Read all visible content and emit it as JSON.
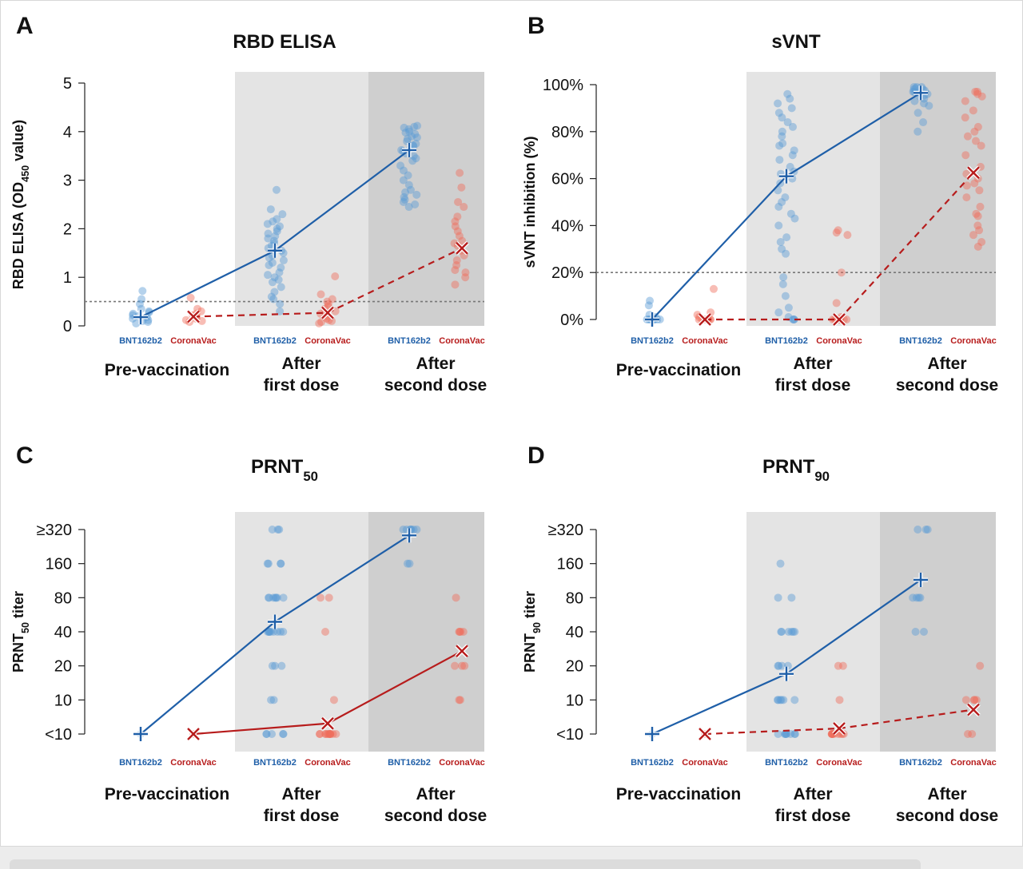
{
  "colors": {
    "bnt": "#1f5fa8",
    "bnt_dot": "#5b9bd5",
    "corona": "#b71c1c",
    "corona_dot": "#ef6c5c",
    "band_first": "#e4e4e4",
    "band_second": "#cfcfcf",
    "threshold": "#777777"
  },
  "groups": [
    "Pre-vaccination",
    "After first dose",
    "After second dose"
  ],
  "group_lines": [
    [
      "Pre-vaccination"
    ],
    [
      "After",
      "first dose"
    ],
    [
      "After",
      "second dose"
    ]
  ],
  "vaccines": [
    "BNT162b2",
    "CoronaVac"
  ],
  "chart_data": [
    {
      "panel": "A",
      "type": "scatter",
      "title": "RBD ELISA",
      "ylabel": "RBD ELISA (OD450 value)",
      "ylabel_parts": [
        {
          "t": "RBD ELISA (OD"
        },
        {
          "t": "450",
          "sub": true
        },
        {
          "t": " value)"
        }
      ],
      "scale": "linear",
      "ylim": [
        0,
        5
      ],
      "yticks": [
        0,
        1,
        2,
        3,
        4,
        5
      ],
      "ytick_labels": [
        "0",
        "1",
        "2",
        "3",
        "4",
        "5"
      ],
      "threshold": 0.5,
      "threshold_label": "",
      "series": [
        {
          "vaccine": "BNT162b2",
          "line": "solid",
          "means": [
            0.18,
            1.55,
            3.62
          ],
          "points": [
            [
              0.05,
              0.08,
              0.1,
              0.12,
              0.15,
              0.18,
              0.2,
              0.22,
              0.25,
              0.28,
              0.3,
              0.35,
              0.45,
              0.55,
              0.72
            ],
            [
              0.3,
              0.45,
              0.55,
              0.7,
              0.8,
              0.9,
              1.0,
              1.05,
              1.1,
              1.2,
              1.3,
              1.4,
              1.5,
              1.6,
              1.7,
              1.75,
              1.8,
              1.9,
              2.0,
              2.05,
              2.1,
              2.2,
              2.3,
              2.4,
              2.8,
              1.45,
              1.65,
              1.85,
              0.95,
              0.6,
              1.25,
              1.55,
              1.95,
              2.15,
              1.35
            ],
            [
              2.45,
              2.55,
              2.6,
              2.7,
              2.8,
              2.9,
              3.0,
              3.1,
              3.2,
              3.3,
              3.4,
              3.5,
              3.6,
              3.65,
              3.7,
              3.75,
              3.8,
              3.85,
              3.9,
              3.95,
              4.0,
              4.05,
              4.1,
              4.12,
              3.55,
              3.45,
              2.65,
              2.75,
              3.88,
              3.72,
              4.08,
              3.62,
              3.98,
              2.5
            ]
          ]
        },
        {
          "vaccine": "CoronaVac",
          "line": "dashed",
          "means": [
            0.19,
            0.27,
            1.6
          ],
          "points": [
            [
              0.08,
              0.1,
              0.12,
              0.15,
              0.18,
              0.2,
              0.22,
              0.25,
              0.3,
              0.35,
              0.58
            ],
            [
              0.05,
              0.08,
              0.1,
              0.15,
              0.2,
              0.25,
              0.3,
              0.35,
              0.4,
              0.5,
              0.55,
              0.65,
              1.02,
              0.12,
              0.45
            ],
            [
              0.85,
              1.0,
              1.15,
              1.25,
              1.35,
              1.45,
              1.55,
              1.65,
              1.75,
              1.85,
              1.95,
              2.05,
              2.15,
              2.25,
              2.45,
              2.55,
              2.85,
              3.15,
              1.1,
              1.7
            ]
          ]
        }
      ]
    },
    {
      "panel": "B",
      "type": "scatter",
      "title": "sVNT",
      "ylabel": "sVNT inhibition (%)",
      "ylabel_parts": [
        {
          "t": "sVNT inhibition (%)"
        }
      ],
      "scale": "linear",
      "ylim": [
        0,
        100
      ],
      "yticks": [
        0,
        20,
        40,
        60,
        80,
        100
      ],
      "ytick_labels": [
        "0%",
        "20%",
        "40%",
        "60%",
        "80%",
        "100%"
      ],
      "threshold": 20,
      "threshold_label": "",
      "series": [
        {
          "vaccine": "BNT162b2",
          "line": "solid",
          "means": [
            0,
            61,
            96.5
          ],
          "points": [
            [
              0,
              0,
              0,
              0,
              0,
              0,
              0,
              0,
              0,
              0,
              1,
              2,
              6,
              8
            ],
            [
              0,
              0,
              0,
              1,
              3,
              5,
              10,
              15,
              18,
              28,
              30,
              33,
              35,
              40,
              43,
              45,
              48,
              50,
              52,
              55,
              58,
              60,
              62,
              63,
              65,
              68,
              70,
              72,
              74,
              75,
              78,
              80,
              82,
              84,
              86,
              88,
              90,
              92,
              94,
              96
            ],
            [
              80,
              84,
              88,
              91,
              92,
              93,
              94,
              95,
              95.5,
              96,
              96.5,
              97,
              97,
              97.5,
              98,
              98,
              98.5,
              99,
              99,
              99
            ]
          ]
        },
        {
          "vaccine": "CoronaVac",
          "line": "dashed",
          "means": [
            0,
            0,
            62.5
          ],
          "points": [
            [
              0,
              0,
              0,
              0,
              0,
              0,
              0,
              0,
              0,
              1,
              2,
              3,
              13
            ],
            [
              0,
              0,
              0,
              0,
              0,
              0,
              0,
              0,
              1,
              7,
              20,
              36,
              37,
              38
            ],
            [
              31,
              33,
              36,
              38,
              40,
              44,
              45,
              48,
              52,
              55,
              57,
              58,
              60,
              62,
              65,
              70,
              74,
              76,
              78,
              80,
              82,
              86,
              89,
              93,
              95,
              96,
              97,
              97
            ]
          ]
        }
      ]
    },
    {
      "panel": "C",
      "type": "scatter",
      "title": "PRNT50",
      "title_parts": [
        {
          "t": "PRNT"
        },
        {
          "t": "50",
          "sub": true
        }
      ],
      "ylabel": "PRNT50 titer",
      "ylabel_parts": [
        {
          "t": "PRNT"
        },
        {
          "t": "50",
          "sub": true
        },
        {
          "t": " titer"
        }
      ],
      "scale": "log2",
      "ylim": [
        5,
        320
      ],
      "yticks": [
        5,
        10,
        20,
        40,
        80,
        160,
        320
      ],
      "ytick_labels": [
        "<10",
        "10",
        "20",
        "40",
        "80",
        "160",
        "≥320"
      ],
      "threshold": null,
      "series": [
        {
          "vaccine": "BNT162b2",
          "line": "solid",
          "means": [
            5,
            49,
            284
          ],
          "points": [
            [
              5
            ],
            [
              5,
              5,
              5,
              5,
              5,
              10,
              10,
              20,
              20,
              20,
              40,
              40,
              40,
              40,
              40,
              40,
              40,
              40,
              40,
              80,
              80,
              80,
              80,
              80,
              80,
              80,
              160,
              160,
              160,
              160,
              320,
              320,
              320
            ],
            [
              160,
              160,
              320,
              320,
              320,
              320,
              320,
              320,
              320
            ]
          ]
        },
        {
          "vaccine": "CoronaVac",
          "line": "solid",
          "means": [
            5,
            6.2,
            27
          ],
          "points": [
            [
              5
            ],
            [
              5,
              5,
              5,
              5,
              5,
              5,
              5,
              5,
              5,
              5,
              5,
              5,
              10,
              40,
              80,
              80
            ],
            [
              10,
              10,
              20,
              20,
              20,
              40,
              40,
              40,
              40,
              80
            ]
          ]
        }
      ]
    },
    {
      "panel": "D",
      "type": "scatter",
      "title": "PRNT90",
      "title_parts": [
        {
          "t": "PRNT"
        },
        {
          "t": "90",
          "sub": true
        }
      ],
      "ylabel": "PRNT90 titer",
      "ylabel_parts": [
        {
          "t": "PRNT"
        },
        {
          "t": "90",
          "sub": true
        },
        {
          "t": " titer"
        }
      ],
      "scale": "log2",
      "ylim": [
        5,
        320
      ],
      "yticks": [
        5,
        10,
        20,
        40,
        80,
        160,
        320
      ],
      "ytick_labels": [
        "<10",
        "10",
        "20",
        "40",
        "80",
        "160",
        "≥320"
      ],
      "threshold": null,
      "series": [
        {
          "vaccine": "BNT162b2",
          "line": "solid",
          "means": [
            5,
            17,
            115
          ],
          "points": [
            [
              5
            ],
            [
              5,
              5,
              5,
              5,
              5,
              5,
              5,
              5,
              10,
              10,
              10,
              10,
              10,
              10,
              20,
              20,
              20,
              20,
              40,
              40,
              40,
              40,
              40,
              40,
              80,
              80,
              160
            ],
            [
              40,
              40,
              80,
              80,
              80,
              80,
              320,
              320,
              320
            ]
          ]
        },
        {
          "vaccine": "CoronaVac",
          "line": "dashed",
          "means": [
            5,
            5.6,
            8.2
          ],
          "points": [
            [
              5
            ],
            [
              5,
              5,
              5,
              5,
              5,
              5,
              5,
              5,
              5,
              5,
              10,
              20,
              20
            ],
            [
              5,
              5,
              10,
              10,
              10,
              10,
              20
            ]
          ]
        }
      ]
    }
  ]
}
